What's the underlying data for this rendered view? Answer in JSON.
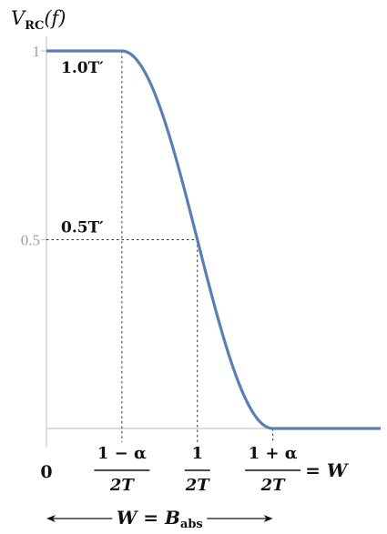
{
  "chart_data": {
    "type": "line",
    "title": "",
    "ylabel": {
      "main": "V",
      "sub": "RC",
      "rest": "(f)"
    },
    "xlim": [
      0,
      1.55
    ],
    "ylim": [
      0,
      1.0
    ],
    "yticks": [
      {
        "value": 1.0,
        "label": "1"
      },
      {
        "value": 0.5,
        "label": "0.5"
      }
    ],
    "xticks": [
      {
        "value": 0,
        "kind": "plain",
        "label": "0"
      },
      {
        "value": 0.35,
        "kind": "frac",
        "num": "1 − α",
        "den": "2T",
        "suffix": ""
      },
      {
        "value": 0.7,
        "kind": "frac",
        "num": "1",
        "den": "2T",
        "suffix": ""
      },
      {
        "value": 1.05,
        "kind": "frac",
        "num": "1 + α",
        "den": "2T",
        "suffix": "= W"
      }
    ],
    "series": [
      {
        "shape": "raised-cosine",
        "rolloff": 0.5,
        "x_flat_end": 0.35,
        "x_zero_start": 1.05,
        "x_end": 1.55,
        "color": "#5b7fb5"
      }
    ],
    "annotations": [
      {
        "x": 0.35,
        "y": 1.0,
        "text": "1.0T′"
      },
      {
        "x": 0.7,
        "y": 0.5,
        "text": "0.5T′"
      }
    ],
    "guide_lines": [
      {
        "x": 0.35,
        "y": 1.0
      },
      {
        "x": 0.7,
        "y": 0.5
      },
      {
        "x": 1.05,
        "y": 0.0
      }
    ],
    "bandwidth_arrow": {
      "x_from": 0,
      "x_to": 1.05,
      "label_main": "W = B",
      "label_sub": "abs"
    }
  }
}
